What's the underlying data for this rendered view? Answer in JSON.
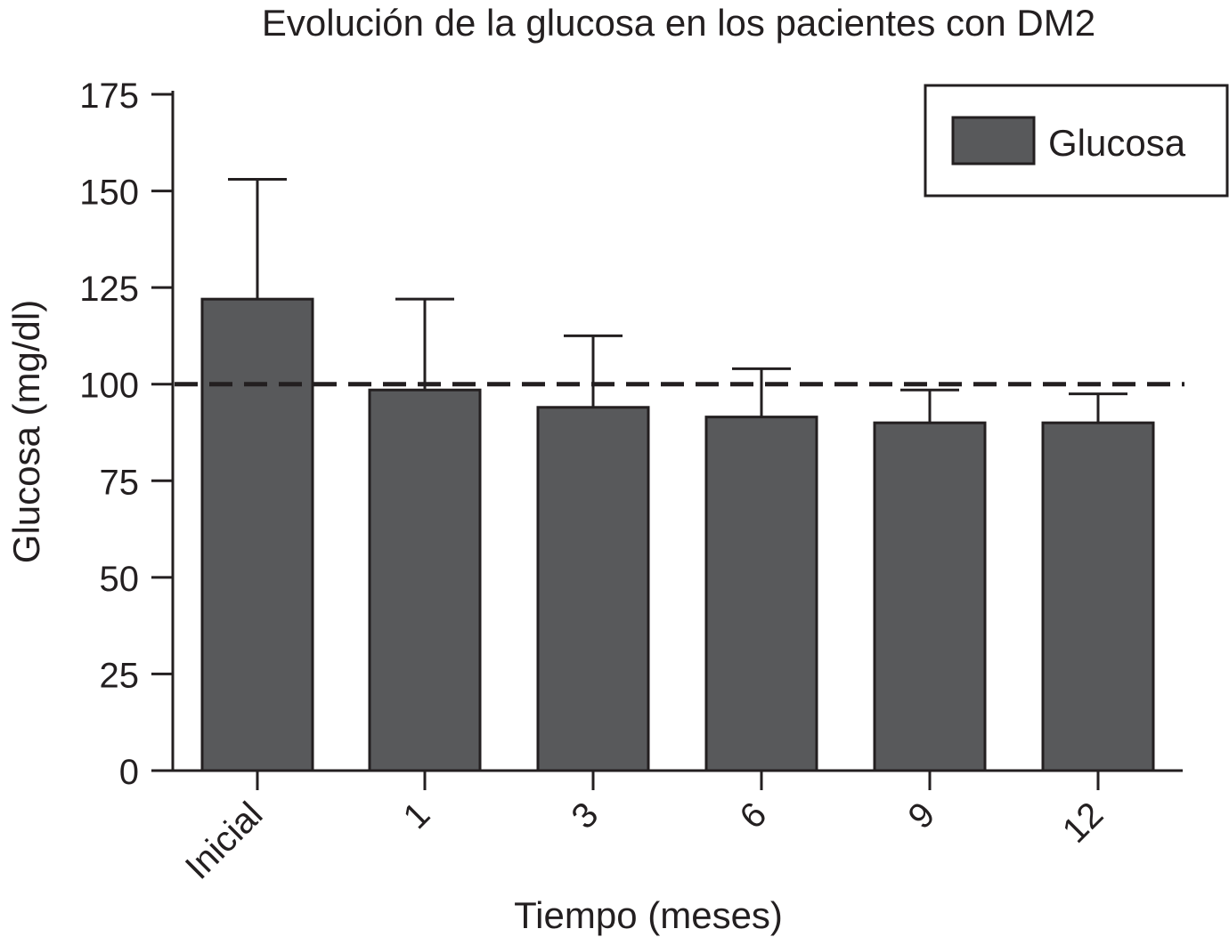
{
  "chart_data": {
    "type": "bar",
    "title": "Evolución de la glucosa en los pacientes con DM2",
    "xlabel": "Tiempo (meses)",
    "ylabel": "Glucosa (mg/dl)",
    "categories": [
      "Inicial",
      "1",
      "3",
      "6",
      "9",
      "12"
    ],
    "series": [
      {
        "name": "Glucosa",
        "values": [
          122,
          98.5,
          94,
          91.5,
          90,
          90
        ],
        "error_upper": [
          153,
          122,
          112.5,
          104,
          98.5,
          97.5
        ],
        "color": "#58595b"
      }
    ],
    "reference_line": {
      "y": 100,
      "style": "dashed"
    },
    "ylim": [
      0,
      175
    ],
    "yticks": [
      0,
      25,
      50,
      75,
      100,
      125,
      150,
      175
    ],
    "legend_position": "top-right",
    "grid": false
  }
}
